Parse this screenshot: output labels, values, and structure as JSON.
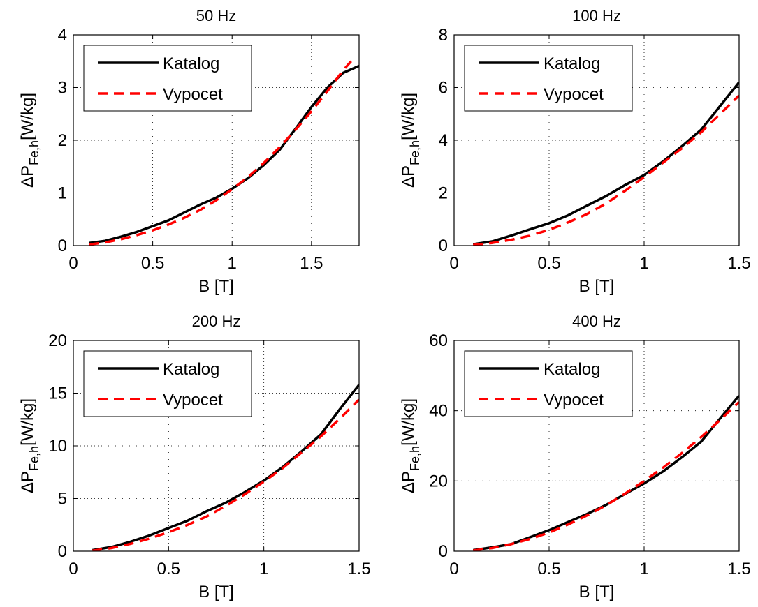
{
  "chart_data": [
    {
      "type": "line",
      "title": "50 Hz",
      "xlabel": "B [T]",
      "ylabel": {
        "base": "ΔP",
        "sub": "Fe,h",
        "unit": "[W/kg]"
      },
      "xlim": [
        0,
        1.8
      ],
      "ylim": [
        0,
        4
      ],
      "xticks": [
        "0",
        "0.5",
        "1",
        "1.5"
      ],
      "xtick_values": [
        0,
        0.5,
        1,
        1.5
      ],
      "yticks": [
        "0",
        "1",
        "2",
        "3",
        "4"
      ],
      "ytick_values": [
        0,
        1,
        2,
        3,
        4
      ],
      "grid": true,
      "legend_position": "top-left",
      "series": [
        {
          "name": "Katalog",
          "color": "#000000",
          "style": "solid",
          "x": [
            0.1,
            0.2,
            0.3,
            0.4,
            0.5,
            0.6,
            0.7,
            0.8,
            0.9,
            1.0,
            1.1,
            1.2,
            1.3,
            1.4,
            1.5,
            1.6,
            1.7,
            1.8
          ],
          "y": [
            0.05,
            0.09,
            0.17,
            0.26,
            0.37,
            0.48,
            0.63,
            0.78,
            0.91,
            1.08,
            1.28,
            1.53,
            1.82,
            2.22,
            2.63,
            3.0,
            3.28,
            3.41
          ]
        },
        {
          "name": "Vypocet",
          "color": "#ff0000",
          "style": "dashed",
          "x": [
            0.1,
            0.2,
            0.3,
            0.4,
            0.5,
            0.6,
            0.7,
            0.8,
            0.9,
            1.0,
            1.1,
            1.2,
            1.3,
            1.4,
            1.5,
            1.6,
            1.7,
            1.75
          ],
          "y": [
            0.02,
            0.06,
            0.12,
            0.2,
            0.29,
            0.4,
            0.53,
            0.68,
            0.86,
            1.07,
            1.3,
            1.57,
            1.87,
            2.2,
            2.55,
            2.93,
            3.33,
            3.5
          ]
        }
      ]
    },
    {
      "type": "line",
      "title": "100 Hz",
      "xlabel": "B [T]",
      "ylabel": {
        "base": "ΔP",
        "sub": "Fe,h",
        "unit": "[W/kg]"
      },
      "xlim": [
        0,
        1.5
      ],
      "ylim": [
        0,
        8
      ],
      "xticks": [
        "0",
        "0.5",
        "1",
        "1.5"
      ],
      "xtick_values": [
        0,
        0.5,
        1,
        1.5
      ],
      "yticks": [
        "0",
        "2",
        "4",
        "6",
        "8"
      ],
      "ytick_values": [
        0,
        2,
        4,
        6,
        8
      ],
      "grid": true,
      "legend_position": "top-left",
      "series": [
        {
          "name": "Katalog",
          "color": "#000000",
          "style": "solid",
          "x": [
            0.1,
            0.2,
            0.3,
            0.4,
            0.5,
            0.6,
            0.7,
            0.8,
            0.9,
            1.0,
            1.1,
            1.2,
            1.3,
            1.4,
            1.5
          ],
          "y": [
            0.05,
            0.16,
            0.38,
            0.62,
            0.85,
            1.15,
            1.52,
            1.88,
            2.3,
            2.68,
            3.2,
            3.78,
            4.4,
            5.3,
            6.2
          ]
        },
        {
          "name": "Vypocet",
          "color": "#ff0000",
          "style": "dashed",
          "x": [
            0.1,
            0.2,
            0.3,
            0.4,
            0.5,
            0.6,
            0.7,
            0.8,
            0.9,
            1.0,
            1.1,
            1.2,
            1.3,
            1.4,
            1.5
          ],
          "y": [
            0.02,
            0.1,
            0.22,
            0.38,
            0.6,
            0.88,
            1.2,
            1.6,
            2.08,
            2.6,
            3.15,
            3.7,
            4.3,
            5.0,
            5.7
          ]
        }
      ]
    },
    {
      "type": "line",
      "title": "200 Hz",
      "xlabel": "B [T]",
      "ylabel": {
        "base": "ΔP",
        "sub": "Fe,h",
        "unit": "[W/kg]"
      },
      "xlim": [
        0,
        1.5
      ],
      "ylim": [
        0,
        20
      ],
      "xticks": [
        "0",
        "0.5",
        "1",
        "1.5"
      ],
      "xtick_values": [
        0,
        0.5,
        1,
        1.5
      ],
      "yticks": [
        "0",
        "5",
        "10",
        "15",
        "20"
      ],
      "ytick_values": [
        0,
        5,
        10,
        15,
        20
      ],
      "grid": true,
      "legend_position": "top-left",
      "series": [
        {
          "name": "Katalog",
          "color": "#000000",
          "style": "solid",
          "x": [
            0.1,
            0.2,
            0.3,
            0.4,
            0.5,
            0.6,
            0.7,
            0.8,
            0.9,
            1.0,
            1.1,
            1.2,
            1.3,
            1.4,
            1.5
          ],
          "y": [
            0.1,
            0.4,
            0.9,
            1.5,
            2.2,
            2.9,
            3.8,
            4.6,
            5.6,
            6.7,
            8.0,
            9.5,
            11.1,
            13.5,
            15.8
          ]
        },
        {
          "name": "Vypocet",
          "color": "#ff0000",
          "style": "dashed",
          "x": [
            0.1,
            0.2,
            0.3,
            0.4,
            0.5,
            0.6,
            0.7,
            0.8,
            0.9,
            1.0,
            1.1,
            1.2,
            1.3,
            1.4,
            1.5
          ],
          "y": [
            0.05,
            0.3,
            0.7,
            1.2,
            1.8,
            2.5,
            3.3,
            4.3,
            5.4,
            6.6,
            7.9,
            9.4,
            10.9,
            12.6,
            14.4
          ]
        }
      ]
    },
    {
      "type": "line",
      "title": "400 Hz",
      "xlabel": "B [T]",
      "ylabel": {
        "base": "ΔP",
        "sub": "Fe,h",
        "unit": "[W/kg]"
      },
      "xlim": [
        0,
        1.5
      ],
      "ylim": [
        0,
        60
      ],
      "xticks": [
        "0",
        "0.5",
        "1",
        "1.5"
      ],
      "xtick_values": [
        0,
        0.5,
        1,
        1.5
      ],
      "yticks": [
        "0",
        "20",
        "40",
        "60"
      ],
      "ytick_values": [
        0,
        20,
        40,
        60
      ],
      "grid": true,
      "legend_position": "top-left",
      "series": [
        {
          "name": "Katalog",
          "color": "#000000",
          "style": "solid",
          "x": [
            0.1,
            0.2,
            0.3,
            0.4,
            0.5,
            0.6,
            0.7,
            0.8,
            0.9,
            1.0,
            1.1,
            1.2,
            1.3,
            1.4,
            1.5
          ],
          "y": [
            0.3,
            1.1,
            2.0,
            4.0,
            6.0,
            8.3,
            10.6,
            13.2,
            16.3,
            19.3,
            22.7,
            26.8,
            31.2,
            37.8,
            44.3
          ]
        },
        {
          "name": "Vypocet",
          "color": "#ff0000",
          "style": "dashed",
          "x": [
            0.1,
            0.2,
            0.3,
            0.4,
            0.5,
            0.6,
            0.7,
            0.8,
            0.9,
            1.0,
            1.1,
            1.2,
            1.3,
            1.4,
            1.5
          ],
          "y": [
            0.2,
            0.9,
            2.0,
            3.5,
            5.3,
            7.6,
            10.2,
            13.1,
            16.4,
            20.0,
            23.8,
            28.0,
            32.5,
            37.4,
            42.5
          ]
        }
      ]
    }
  ]
}
